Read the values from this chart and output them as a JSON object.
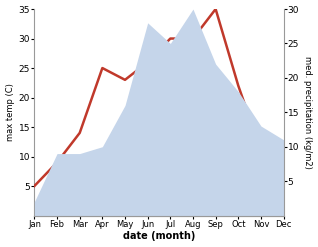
{
  "months": [
    "Jan",
    "Feb",
    "Mar",
    "Apr",
    "May",
    "Jun",
    "Jul",
    "Aug",
    "Sep",
    "Oct",
    "Nov",
    "Dec"
  ],
  "temperature": [
    5,
    9,
    14,
    25,
    23,
    26,
    30,
    30,
    35,
    22,
    11,
    5
  ],
  "precipitation": [
    2,
    9,
    9,
    10,
    16,
    28,
    25,
    30,
    22,
    18,
    13,
    11
  ],
  "temp_color": "#c0392b",
  "precip_color": "#c5d5ea",
  "temp_ylim": [
    0,
    35
  ],
  "precip_ylim": [
    0,
    30
  ],
  "temp_yticks": [
    5,
    10,
    15,
    20,
    25,
    30,
    35
  ],
  "precip_yticks": [
    5,
    10,
    15,
    20,
    25,
    30
  ],
  "xlabel": "date (month)",
  "ylabel_left": "max temp (C)",
  "ylabel_right": "med. precipitation (kg/m2)",
  "bg_color": "#ffffff",
  "line_width": 1.8
}
